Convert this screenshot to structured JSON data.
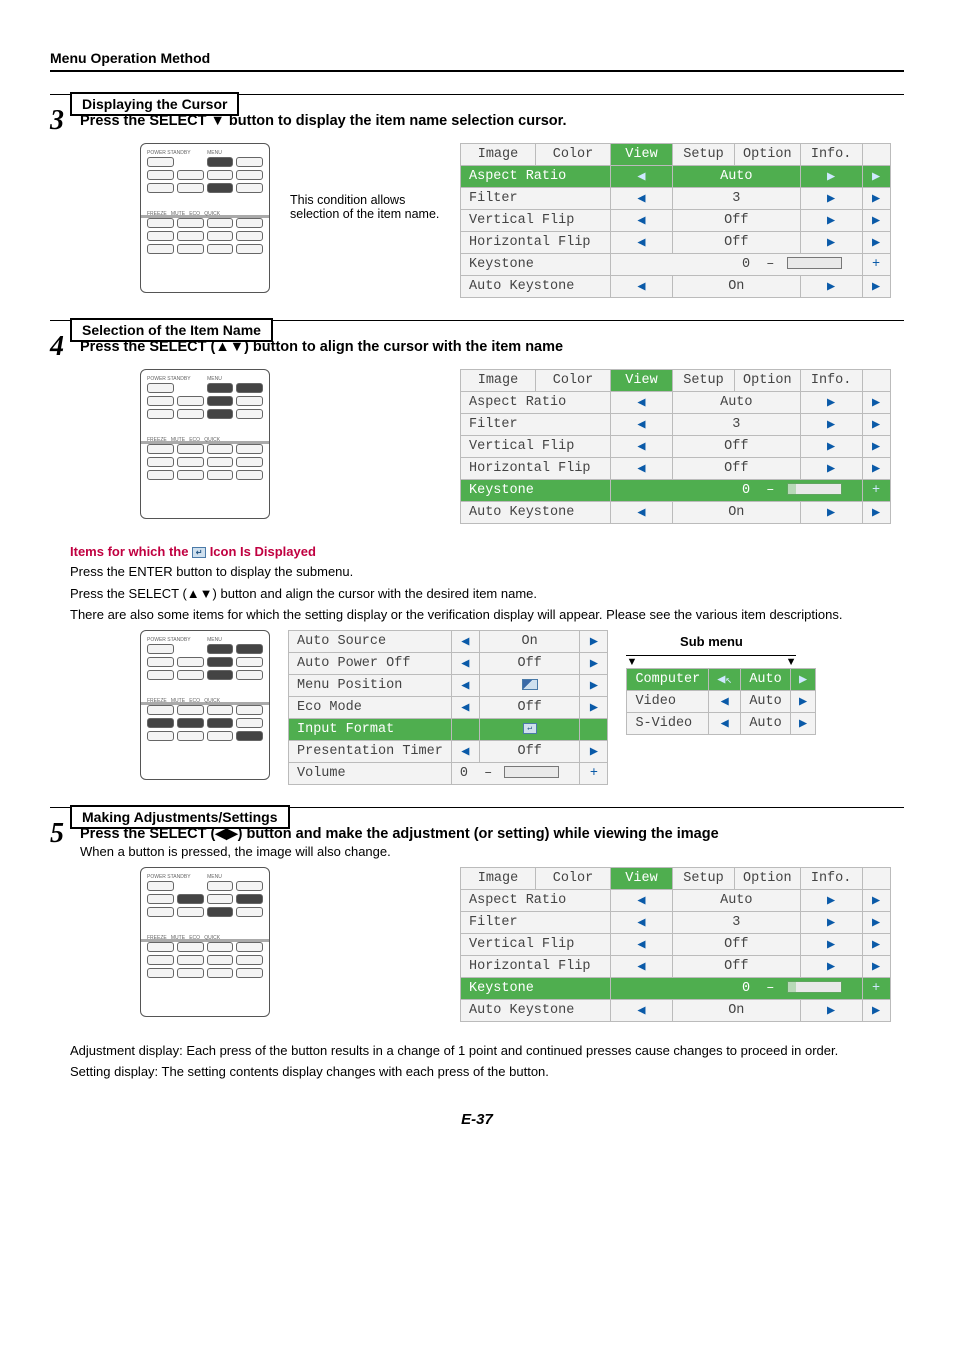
{
  "header": "Menu Operation Method",
  "sections": {
    "s3_label": "Displaying the Cursor",
    "s4_label": "Selection of the Item Name",
    "s5_label": "Making Adjustments/Settings"
  },
  "steps": {
    "s3_num": "3",
    "s3_text": "Press the SELECT ▼ button to display the item name selection cursor.",
    "s3_caption": "This condition allows selection of the item name.",
    "s4_num": "4",
    "s4_text": "Press the SELECT (▲▼) button to align the cursor with the item name",
    "s5_num": "5",
    "s5_text": "Press the SELECT (◀▶) button and make the adjustment (or setting) while viewing the image",
    "s5_sub": "When a button is pressed, the image will also change."
  },
  "osd_tabs": [
    "Image",
    "Color",
    "View",
    "Setup",
    "Option",
    "Info."
  ],
  "osd_active_tab_index": 2,
  "menu3": {
    "highlight_row": 0,
    "rows": [
      {
        "name": "Aspect Ratio",
        "val": "Auto",
        "type": "lr"
      },
      {
        "name": "Filter",
        "val": "3",
        "type": "lr"
      },
      {
        "name": "Vertical Flip",
        "val": "Off",
        "type": "lr"
      },
      {
        "name": "Horizontal Flip",
        "val": "Off",
        "type": "lr"
      },
      {
        "name": "Keystone",
        "val": "0",
        "type": "slider"
      },
      {
        "name": "Auto Keystone",
        "val": "On",
        "type": "lr"
      }
    ]
  },
  "menu4": {
    "highlight_row": 4,
    "rows": [
      {
        "name": "Aspect Ratio",
        "val": "Auto",
        "type": "lr"
      },
      {
        "name": "Filter",
        "val": "3",
        "type": "lr"
      },
      {
        "name": "Vertical Flip",
        "val": "Off",
        "type": "lr"
      },
      {
        "name": "Horizontal Flip",
        "val": "Off",
        "type": "lr"
      },
      {
        "name": "Keystone",
        "val": "0",
        "type": "slider"
      },
      {
        "name": "Auto Keystone",
        "val": "On",
        "type": "lr"
      }
    ]
  },
  "menu5": {
    "highlight_row": 4,
    "rows": [
      {
        "name": "Aspect Ratio",
        "val": "Auto",
        "type": "lr"
      },
      {
        "name": "Filter",
        "val": "3",
        "type": "lr"
      },
      {
        "name": "Vertical Flip",
        "val": "Off",
        "type": "lr"
      },
      {
        "name": "Horizontal Flip",
        "val": "Off",
        "type": "lr"
      },
      {
        "name": "Keystone",
        "val": "0",
        "type": "slider"
      },
      {
        "name": "Auto Keystone",
        "val": "On",
        "type": "lr"
      }
    ]
  },
  "notes": {
    "subhead": "Items for which the ↵ Icon Is Displayed",
    "l1": "Press the ENTER button to display the submenu.",
    "l2": "Press the SELECT (▲▼) button and align the cursor with the desired item name.",
    "l3": "There are also some items for which the setting display or the verification display will appear. Please see the various item descriptions."
  },
  "setup_menu": {
    "highlight_row": 4,
    "rows": [
      {
        "name": "Auto Source",
        "val": "On",
        "type": "lr"
      },
      {
        "name": "Auto Power Off",
        "val": "Off",
        "type": "lr"
      },
      {
        "name": "Menu Position",
        "val": "",
        "type": "pos"
      },
      {
        "name": "Eco Mode",
        "val": "Off",
        "type": "lr"
      },
      {
        "name": "Input Format",
        "val": "",
        "type": "enter"
      },
      {
        "name": "Presentation Timer",
        "val": "Off",
        "type": "lr"
      },
      {
        "name": "Volume",
        "val": "0",
        "type": "slider"
      }
    ]
  },
  "submenu": {
    "label": "Sub menu",
    "highlight_row": 0,
    "rows": [
      {
        "name": "Computer",
        "val": "Auto"
      },
      {
        "name": "Video",
        "val": "Auto"
      },
      {
        "name": "S-Video",
        "val": "Auto"
      }
    ]
  },
  "footer": {
    "l1": "Adjustment display: Each press of the button results in a change of 1 point and continued presses cause changes to proceed in order.",
    "l2": "Setting display: The setting contents display changes with each press of the button."
  },
  "page_num": "E-37",
  "colors": {
    "highlight": "#4fae4f",
    "arrow": "#0a5aa8",
    "heading_red": "#c00040"
  }
}
